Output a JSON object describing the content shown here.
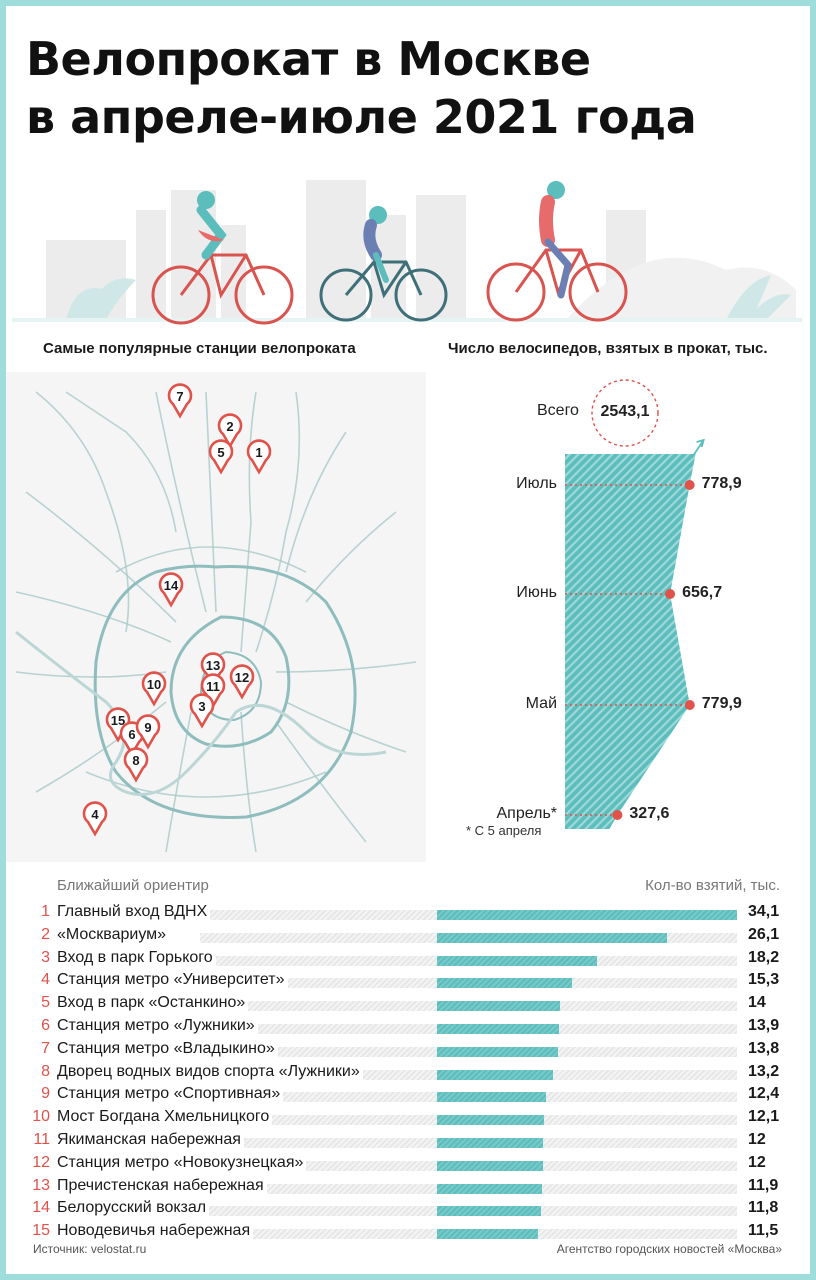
{
  "title": {
    "line1": "Велопрокат в Москве",
    "line2": "в апреле-июле 2021 года"
  },
  "sections": {
    "map_title": "Самые популярные станции велопроката",
    "months_title": "Число велосипедов, взятых в прокат, тыс."
  },
  "colors": {
    "accent_red": "#e0524a",
    "teal": "#5cbdbd",
    "frame": "#9fdcdc",
    "road": "#8fbdbd"
  },
  "map": {
    "markers": [
      "7",
      "2",
      "5",
      "1",
      "14",
      "13",
      "11",
      "12",
      "10",
      "3",
      "15",
      "6",
      "9",
      "8",
      "4"
    ]
  },
  "monthly": {
    "total_label": "Всего",
    "total_value": "2543,1",
    "footnote": "* С 5 апреля"
  },
  "chart_data": [
    {
      "type": "area",
      "title": "Число велосипедов, взятых в прокат, тыс.",
      "categories": [
        "Июль",
        "Июнь",
        "Май",
        "Апрель*"
      ],
      "values": [
        778.9,
        656.7,
        779.9,
        327.6
      ],
      "value_labels": [
        "778,9",
        "656,7",
        "779,9",
        "327,6"
      ],
      "total": 2543.1
    },
    {
      "type": "bar",
      "title": "",
      "xlabel": "Ближайший ориентир",
      "ylabel": "Кол-во взятий, тыс.",
      "ranks": [
        "1",
        "2",
        "3",
        "4",
        "5",
        "6",
        "7",
        "8",
        "9",
        "10",
        "11",
        "12",
        "13",
        "14",
        "15"
      ],
      "categories": [
        "Главный вход ВДНХ",
        "«Москвариум»",
        "Вход в парк Горького",
        "Станция метро «Университет»",
        "Вход в парк «Останкино»",
        "Станция метро «Лужники»",
        "Станция метро «Владыкино»",
        "Дворец водных видов спорта «Лужники»",
        "Станция метро «Спортивная»",
        "Мост Богдана Хмельницкого",
        "Якиманская набережная",
        "Станция метро «Новокузнецкая»",
        "Пречистенская набережная",
        "Белорусский вокзал",
        "Новодевичья набережная"
      ],
      "values": [
        34.1,
        26.1,
        18.2,
        15.3,
        14,
        13.9,
        13.8,
        13.2,
        12.4,
        12.1,
        12,
        12,
        11.9,
        11.8,
        11.5
      ],
      "value_labels": [
        "34,1",
        "26,1",
        "18,2",
        "15,3",
        "14",
        "13,9",
        "13,8",
        "13,2",
        "12,4",
        "12,1",
        "12",
        "12",
        "11,9",
        "11,8",
        "11,5"
      ]
    }
  ],
  "footer": {
    "source": "Источник: velostat.ru",
    "agency": "Агентство городских новостей «Москва»"
  }
}
